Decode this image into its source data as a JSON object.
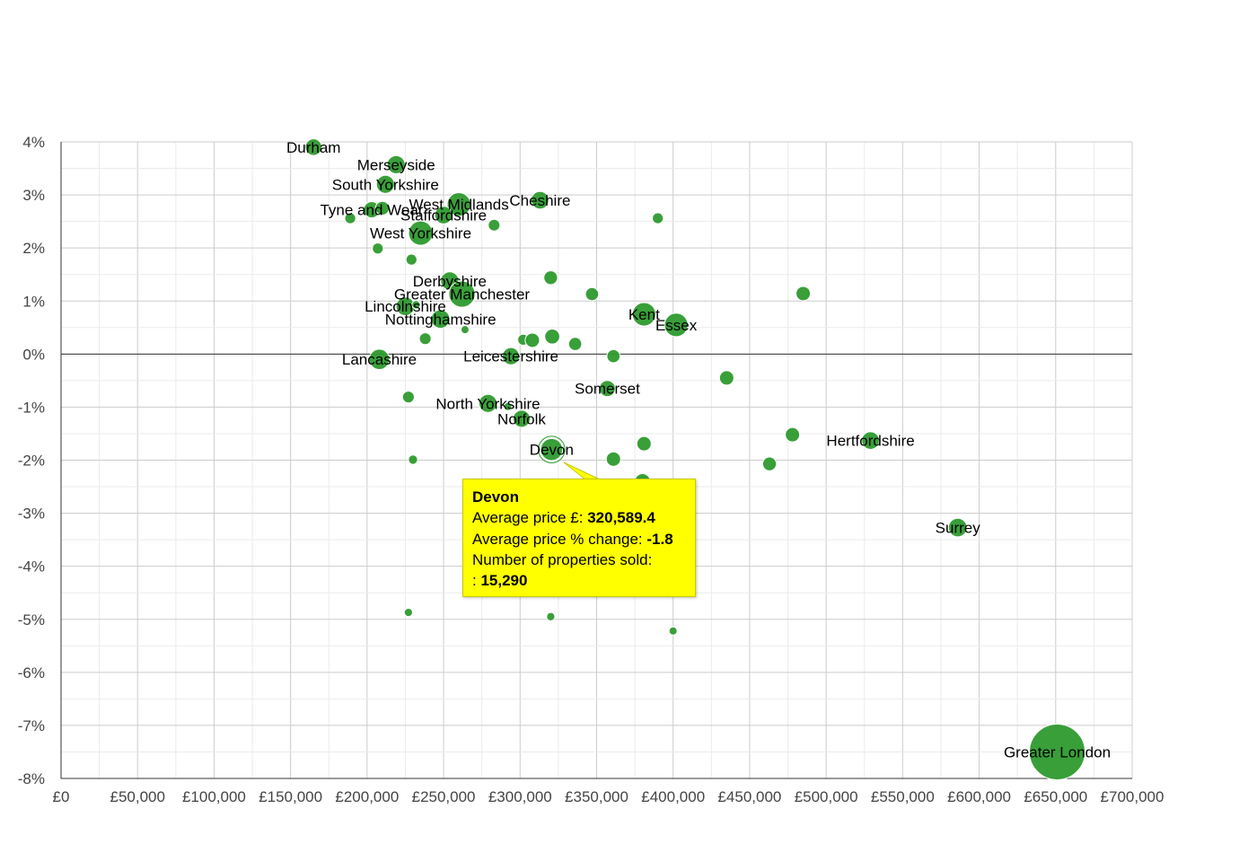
{
  "chart_data": {
    "type": "scatter",
    "title": "",
    "xlabel": "",
    "ylabel": "",
    "xlim": [
      0,
      700000
    ],
    "ylim": [
      -8,
      4
    ],
    "grid": true,
    "legend": "none",
    "marker_color": "#2e9a2e",
    "x_ticks": [
      "£0",
      "£50,000",
      "£100,000",
      "£150,000",
      "£200,000",
      "£250,000",
      "£300,000",
      "£350,000",
      "£400,000",
      "£450,000",
      "£500,000",
      "£550,000",
      "£600,000",
      "£650,000",
      "£700,000"
    ],
    "y_ticks": [
      "4%",
      "3%",
      "2%",
      "1%",
      "0%",
      "-1%",
      "-2%",
      "-3%",
      "-4%",
      "-5%",
      "-6%",
      "-7%",
      "-8%"
    ],
    "points": [
      {
        "label": "Durham",
        "x": 165000,
        "y": 3.9,
        "sold": 8000
      },
      {
        "label": "Merseyside",
        "x": 219000,
        "y": 3.57,
        "sold": 9500
      },
      {
        "label": "South Yorkshire",
        "x": 212000,
        "y": 3.2,
        "sold": 9500
      },
      {
        "label": "West Midlands",
        "x": 260000,
        "y": 2.82,
        "sold": 16000
      },
      {
        "label": "Staffordshire",
        "x": 250000,
        "y": 2.62,
        "sold": 9000
      },
      {
        "label": "Cheshire",
        "x": 313000,
        "y": 2.9,
        "sold": 9000
      },
      {
        "label": "Tyne and Wear",
        "x": 203000,
        "y": 2.72,
        "sold": 7500
      },
      {
        "label": "West Yorkshire",
        "x": 235000,
        "y": 2.28,
        "sold": 17000
      },
      {
        "label": "Derbyshire",
        "x": 254000,
        "y": 1.38,
        "sold": 9500
      },
      {
        "label": "Greater Manchester",
        "x": 262000,
        "y": 1.13,
        "sold": 20000
      },
      {
        "label": "Lincolnshire",
        "x": 225000,
        "y": 0.9,
        "sold": 10000
      },
      {
        "label": "Nottinghamshire",
        "x": 248000,
        "y": 0.66,
        "sold": 10000
      },
      {
        "label": "Kent",
        "x": 381000,
        "y": 0.75,
        "sold": 16000
      },
      {
        "label": "Essex",
        "x": 402000,
        "y": 0.55,
        "sold": 16000
      },
      {
        "label": "Leicestershire",
        "x": 294000,
        "y": -0.04,
        "sold": 8500
      },
      {
        "label": "Lancashire",
        "x": 208000,
        "y": -0.1,
        "sold": 12000
      },
      {
        "label": "Somerset",
        "x": 357000,
        "y": -0.65,
        "sold": 7500
      },
      {
        "label": "North Yorkshire",
        "x": 279000,
        "y": -0.93,
        "sold": 9500
      },
      {
        "label": "Norfolk",
        "x": 301000,
        "y": -1.22,
        "sold": 8500
      },
      {
        "label": "Devon",
        "x": 320589.4,
        "y": -1.8,
        "sold": 15290
      },
      {
        "label": "Hertfordshire",
        "x": 529000,
        "y": -1.63,
        "sold": 9000
      },
      {
        "label": "Surrey",
        "x": 586000,
        "y": -3.27,
        "sold": 10000
      },
      {
        "label": "Greater London",
        "x": 651000,
        "y": -7.5,
        "sold": 90000
      },
      {
        "label": "",
        "x": 189000,
        "y": 2.56,
        "sold": 3500
      },
      {
        "label": "",
        "x": 210000,
        "y": 2.75,
        "sold": 5500
      },
      {
        "label": "",
        "x": 283000,
        "y": 2.43,
        "sold": 4000
      },
      {
        "label": "",
        "x": 390000,
        "y": 2.56,
        "sold": 3500
      },
      {
        "label": "",
        "x": 207000,
        "y": 1.99,
        "sold": 3500
      },
      {
        "label": "",
        "x": 229000,
        "y": 1.78,
        "sold": 3500
      },
      {
        "label": "",
        "x": 320000,
        "y": 1.44,
        "sold": 5500
      },
      {
        "label": "",
        "x": 347000,
        "y": 1.13,
        "sold": 5000
      },
      {
        "label": "",
        "x": 485000,
        "y": 1.14,
        "sold": 6000
      },
      {
        "label": "",
        "x": 232000,
        "y": 0.93,
        "sold": 2000
      },
      {
        "label": "",
        "x": 264000,
        "y": 0.46,
        "sold": 1200
      },
      {
        "label": "",
        "x": 238000,
        "y": 0.29,
        "sold": 4000
      },
      {
        "label": "",
        "x": 302000,
        "y": 0.27,
        "sold": 3500
      },
      {
        "label": "",
        "x": 308000,
        "y": 0.26,
        "sold": 6000
      },
      {
        "label": "",
        "x": 321000,
        "y": 0.33,
        "sold": 6500
      },
      {
        "label": "",
        "x": 336000,
        "y": 0.19,
        "sold": 5000
      },
      {
        "label": "",
        "x": 361000,
        "y": -0.04,
        "sold": 5000
      },
      {
        "label": "",
        "x": 435000,
        "y": -0.45,
        "sold": 6000
      },
      {
        "label": "",
        "x": 227000,
        "y": -0.81,
        "sold": 4000
      },
      {
        "label": "",
        "x": 292000,
        "y": -0.99,
        "sold": 1200
      },
      {
        "label": "",
        "x": 381000,
        "y": -1.69,
        "sold": 6000
      },
      {
        "label": "",
        "x": 478000,
        "y": -1.52,
        "sold": 6000
      },
      {
        "label": "",
        "x": 230000,
        "y": -1.99,
        "sold": 2500
      },
      {
        "label": "",
        "x": 361000,
        "y": -1.98,
        "sold": 6000
      },
      {
        "label": "",
        "x": 463000,
        "y": -2.07,
        "sold": 5500
      },
      {
        "label": "",
        "x": 380000,
        "y": -2.4,
        "sold": 7000
      },
      {
        "label": "",
        "x": 409000,
        "y": -2.46,
        "sold": 4000
      },
      {
        "label": "",
        "x": 227000,
        "y": -4.87,
        "sold": 2000
      },
      {
        "label": "",
        "x": 320000,
        "y": -4.95,
        "sold": 2000
      },
      {
        "label": "",
        "x": 400000,
        "y": -5.22,
        "sold": 1000
      }
    ]
  },
  "tooltip": {
    "title": "Devon",
    "line1_label": "Average price £:",
    "line1_value": "320,589.4",
    "line2_label": "Average price % change:",
    "line2_value": "-1.8",
    "line3_label": "Number of properties sold:",
    "line4_prefix": ":",
    "line4_value": "15,290"
  }
}
